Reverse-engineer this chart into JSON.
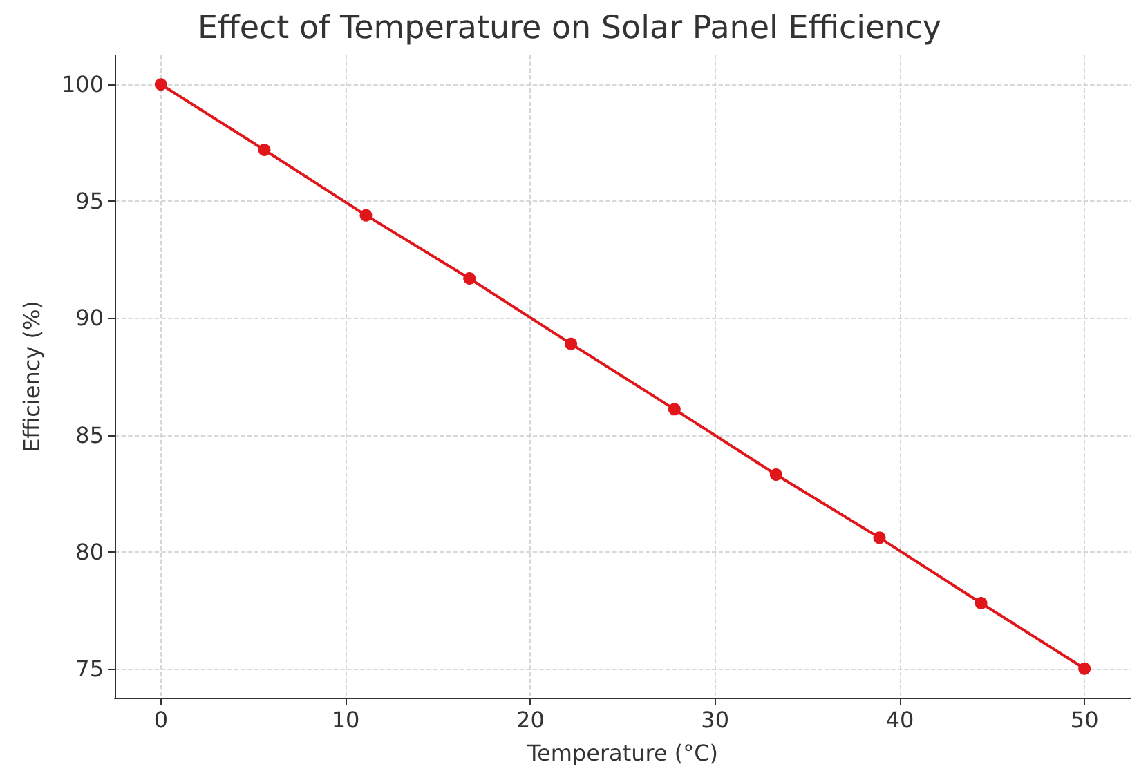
{
  "chart_data": {
    "type": "line",
    "title": "Effect of Temperature on Solar Panel Efficiency",
    "xlabel": "Temperature (°C)",
    "ylabel": "Efficiency (%)",
    "x": [
      0,
      5.6,
      11.1,
      16.7,
      22.2,
      27.8,
      33.3,
      38.9,
      44.4,
      50
    ],
    "series": [
      {
        "color": "#e0161b",
        "values": [
          100,
          97.2,
          94.4,
          91.7,
          88.9,
          86.1,
          83.3,
          80.6,
          77.8,
          75
        ]
      }
    ],
    "xlim": [
      -2.5,
      52.5
    ],
    "xticks": [
      0,
      10,
      20,
      30,
      40,
      50
    ],
    "ylim": [
      73.75,
      101.25
    ],
    "yticks": [
      75,
      80,
      85,
      90,
      95,
      100
    ],
    "grid": true,
    "marker": "circle",
    "line_style": "solid"
  }
}
